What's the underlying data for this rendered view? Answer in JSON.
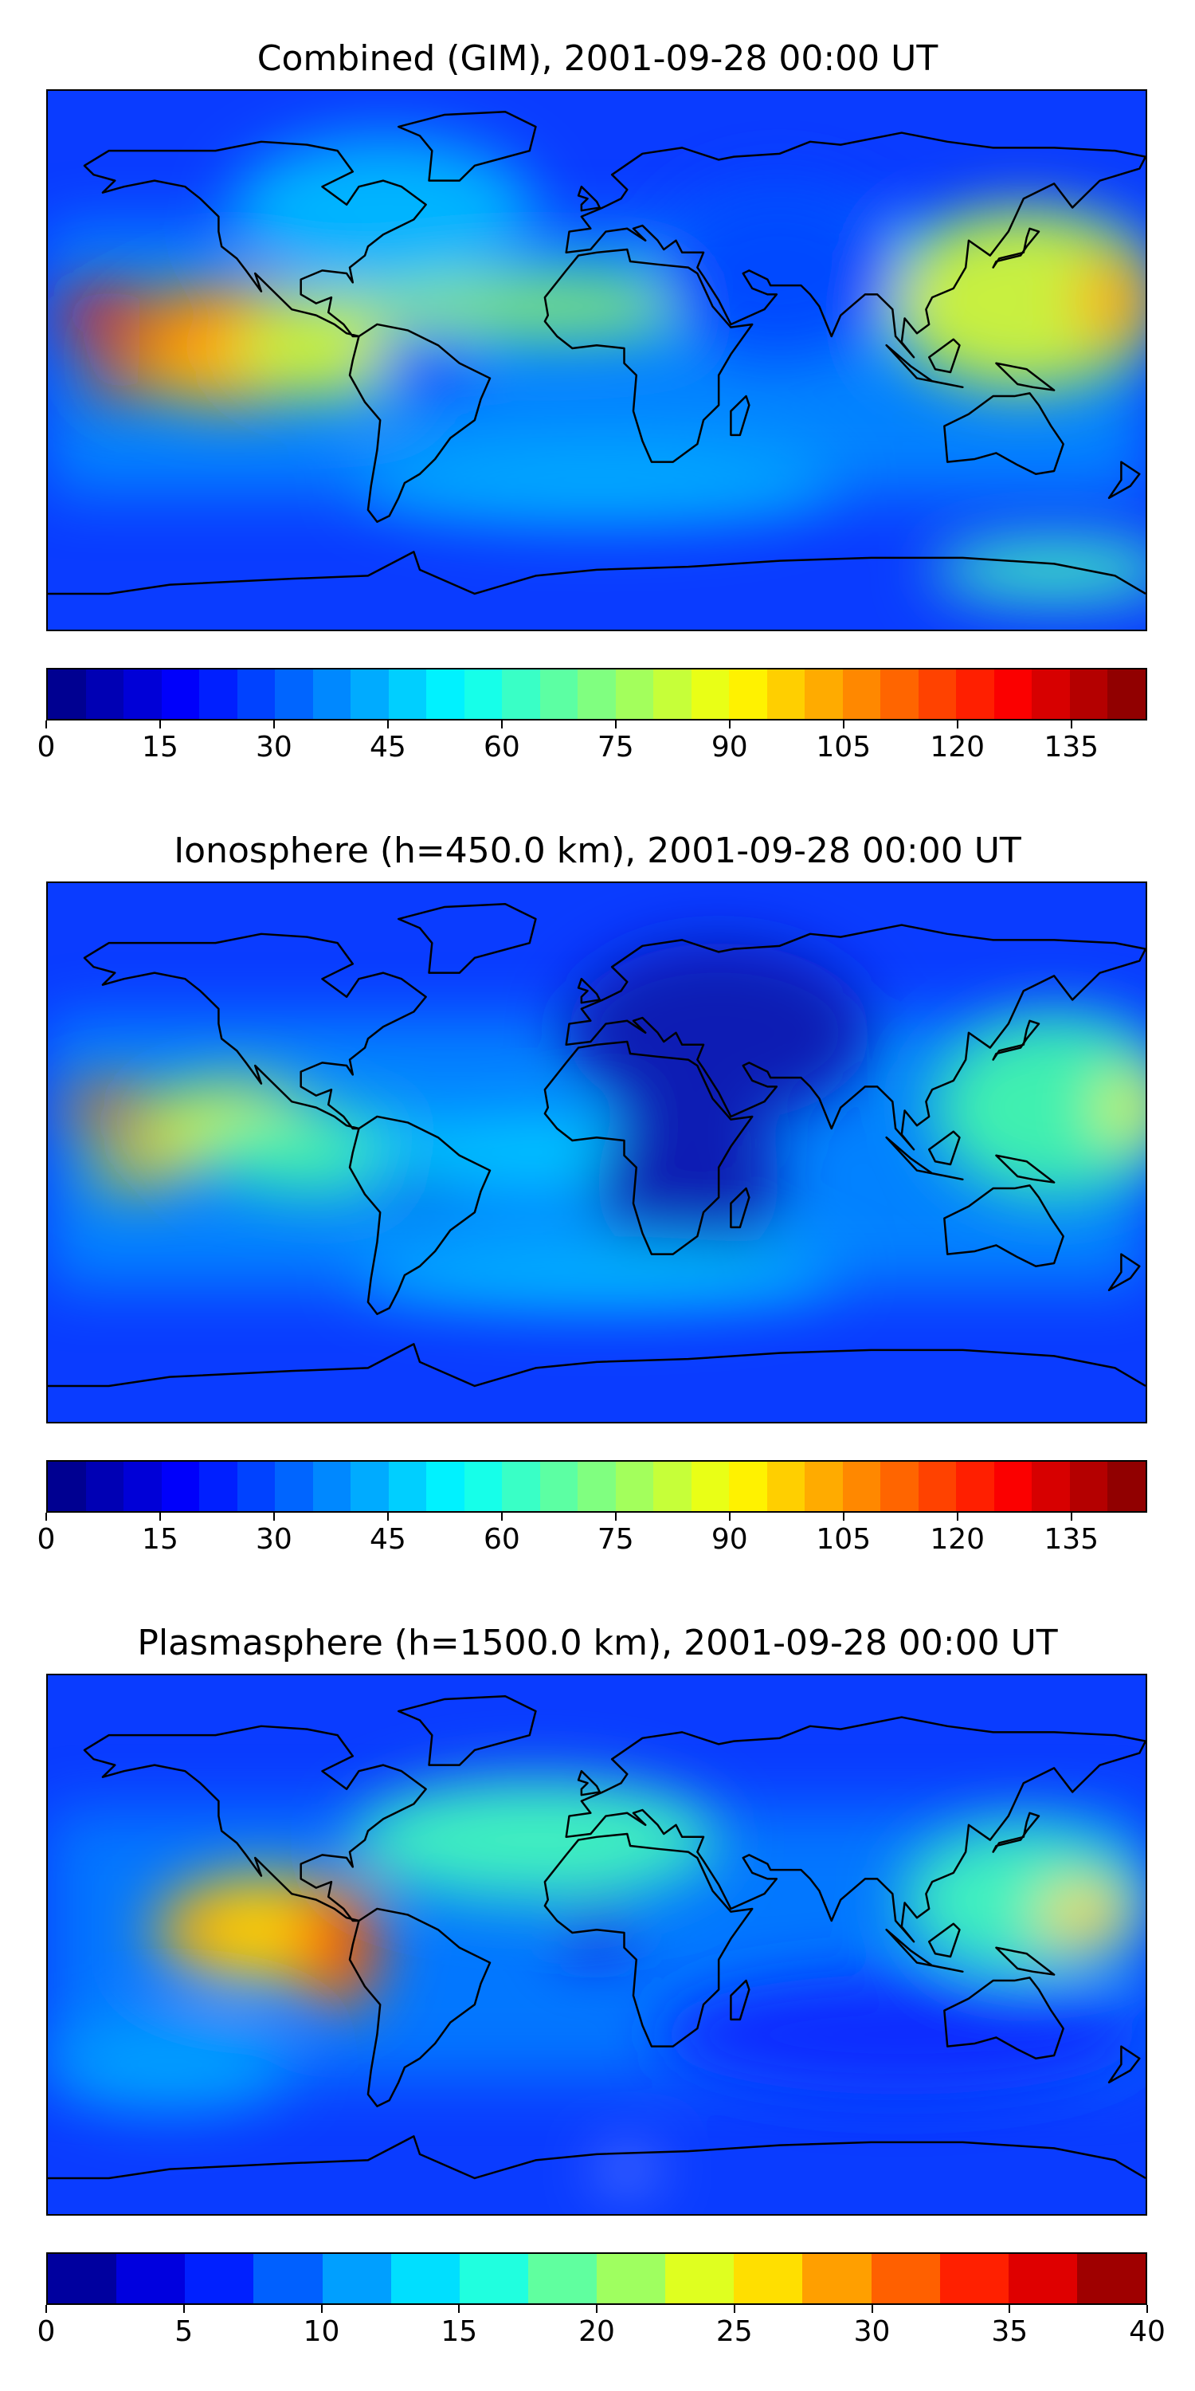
{
  "panels": [
    {
      "title": "Combined (GIM), 2001-09-28 00:00 UT",
      "colorbar": {
        "min": 0,
        "max": 145,
        "ticks": [
          "0",
          "15",
          "30",
          "45",
          "60",
          "75",
          "90",
          "105",
          "120",
          "135"
        ],
        "tick_values": [
          0,
          15,
          30,
          45,
          60,
          75,
          90,
          105,
          120,
          135
        ],
        "levels": 29
      },
      "blobs": [
        {
          "lon": -160,
          "lat": 15,
          "rx": 18,
          "ry": 9,
          "c": "#e81e0a"
        },
        {
          "lon": -155,
          "lat": -5,
          "rx": 14,
          "ry": 7,
          "c": "#f03c0a"
        },
        {
          "lon": -120,
          "lat": 10,
          "rx": 30,
          "ry": 16,
          "c": "#ff8a00"
        },
        {
          "lon": -120,
          "lat": -5,
          "rx": 30,
          "ry": 10,
          "c": "#ffb300"
        },
        {
          "lon": -85,
          "lat": 5,
          "rx": 35,
          "ry": 18,
          "c": "#c8f040"
        },
        {
          "lon": -55,
          "lat": 0,
          "rx": 18,
          "ry": 12,
          "c": "#1e50ff"
        },
        {
          "lon": -20,
          "lat": 18,
          "rx": 60,
          "ry": 10,
          "c": "#8af070"
        },
        {
          "lon": 140,
          "lat": 20,
          "rx": 45,
          "ry": 30,
          "c": "#c8f040"
        },
        {
          "lon": 170,
          "lat": 20,
          "rx": 12,
          "ry": 15,
          "c": "#ffa000"
        },
        {
          "lon": 60,
          "lat": 30,
          "rx": 40,
          "ry": 30,
          "c": "#0048ff"
        },
        {
          "lon": -70,
          "lat": 50,
          "rx": 50,
          "ry": 25,
          "c": "#00b4ff"
        },
        {
          "lon": 0,
          "lat": -40,
          "rx": 80,
          "ry": 15,
          "c": "#00a8ff"
        },
        {
          "lon": 150,
          "lat": -70,
          "rx": 40,
          "ry": 10,
          "c": "#40f0c0"
        }
      ]
    },
    {
      "title": "Ionosphere  (h=450.0 km), 2001-09-28 00:00 UT",
      "colorbar": {
        "min": 0,
        "max": 145,
        "ticks": [
          "0",
          "15",
          "30",
          "45",
          "60",
          "75",
          "90",
          "105",
          "120",
          "135"
        ],
        "tick_values": [
          0,
          15,
          30,
          45,
          60,
          75,
          90,
          105,
          120,
          135
        ],
        "levels": 29
      },
      "blobs": [
        {
          "lon": -160,
          "lat": 15,
          "rx": 16,
          "ry": 7,
          "c": "#ff7000"
        },
        {
          "lon": -150,
          "lat": -5,
          "rx": 18,
          "ry": 6,
          "c": "#ffd000"
        },
        {
          "lon": -120,
          "lat": 10,
          "rx": 30,
          "ry": 14,
          "c": "#c8f040"
        },
        {
          "lon": -90,
          "lat": 0,
          "rx": 40,
          "ry": 14,
          "c": "#40f0b0"
        },
        {
          "lon": -55,
          "lat": -5,
          "rx": 18,
          "ry": 10,
          "c": "#0a1ec8"
        },
        {
          "lon": -10,
          "lat": 0,
          "rx": 70,
          "ry": 12,
          "c": "#00c8ff"
        },
        {
          "lon": 150,
          "lat": 15,
          "rx": 40,
          "ry": 30,
          "c": "#40f0b0"
        },
        {
          "lon": 175,
          "lat": 15,
          "rx": 10,
          "ry": 12,
          "c": "#e0f020"
        },
        {
          "lon": 40,
          "lat": 40,
          "rx": 50,
          "ry": 30,
          "c": "#0a1eb4"
        },
        {
          "lon": 30,
          "lat": -10,
          "rx": 30,
          "ry": 30,
          "c": "#0a1eb4"
        },
        {
          "lon": 0,
          "lat": -40,
          "rx": 80,
          "ry": 12,
          "c": "#00b4ff"
        }
      ]
    },
    {
      "title": "Plasmasphere (h=1500.0 km), 2001-09-28 00:00 UT",
      "colorbar": {
        "min": 0,
        "max": 40,
        "ticks": [
          "0",
          "5",
          "10",
          "15",
          "20",
          "25",
          "30",
          "35",
          "40"
        ],
        "tick_values": [
          0,
          5,
          10,
          15,
          20,
          25,
          30,
          35,
          40
        ],
        "levels": 16
      },
      "blobs": [
        {
          "lon": -110,
          "lat": 5,
          "rx": 35,
          "ry": 18,
          "c": "#ffd000"
        },
        {
          "lon": -130,
          "lat": 5,
          "rx": 10,
          "ry": 6,
          "c": "#ff8a00"
        },
        {
          "lon": -85,
          "lat": 0,
          "rx": 14,
          "ry": 22,
          "c": "#ff7800"
        },
        {
          "lon": -80,
          "lat": 0,
          "rx": 6,
          "ry": 12,
          "c": "#e81e0a"
        },
        {
          "lon": -20,
          "lat": 35,
          "rx": 60,
          "ry": 20,
          "c": "#40f0c0"
        },
        {
          "lon": 0,
          "lat": 5,
          "rx": 12,
          "ry": 10,
          "c": "#1a1ee0"
        },
        {
          "lon": 140,
          "lat": 15,
          "rx": 40,
          "ry": 25,
          "c": "#40f0c0"
        },
        {
          "lon": 160,
          "lat": 10,
          "rx": 15,
          "ry": 10,
          "c": "#ffd000"
        },
        {
          "lon": 100,
          "lat": -30,
          "rx": 80,
          "ry": 20,
          "c": "#0a2cff"
        },
        {
          "lon": -140,
          "lat": -40,
          "rx": 40,
          "ry": 15,
          "c": "#00a0ff"
        },
        {
          "lon": 10,
          "lat": -75,
          "rx": 8,
          "ry": 3,
          "c": "#ffffff"
        }
      ]
    }
  ],
  "colors": {
    "cmap_jet": [
      "#00008f",
      "#0000ff",
      "#0070ff",
      "#00dfff",
      "#50ffaf",
      "#bfff40",
      "#ffcf00",
      "#ff6000",
      "#ef0000",
      "#800000"
    ]
  }
}
